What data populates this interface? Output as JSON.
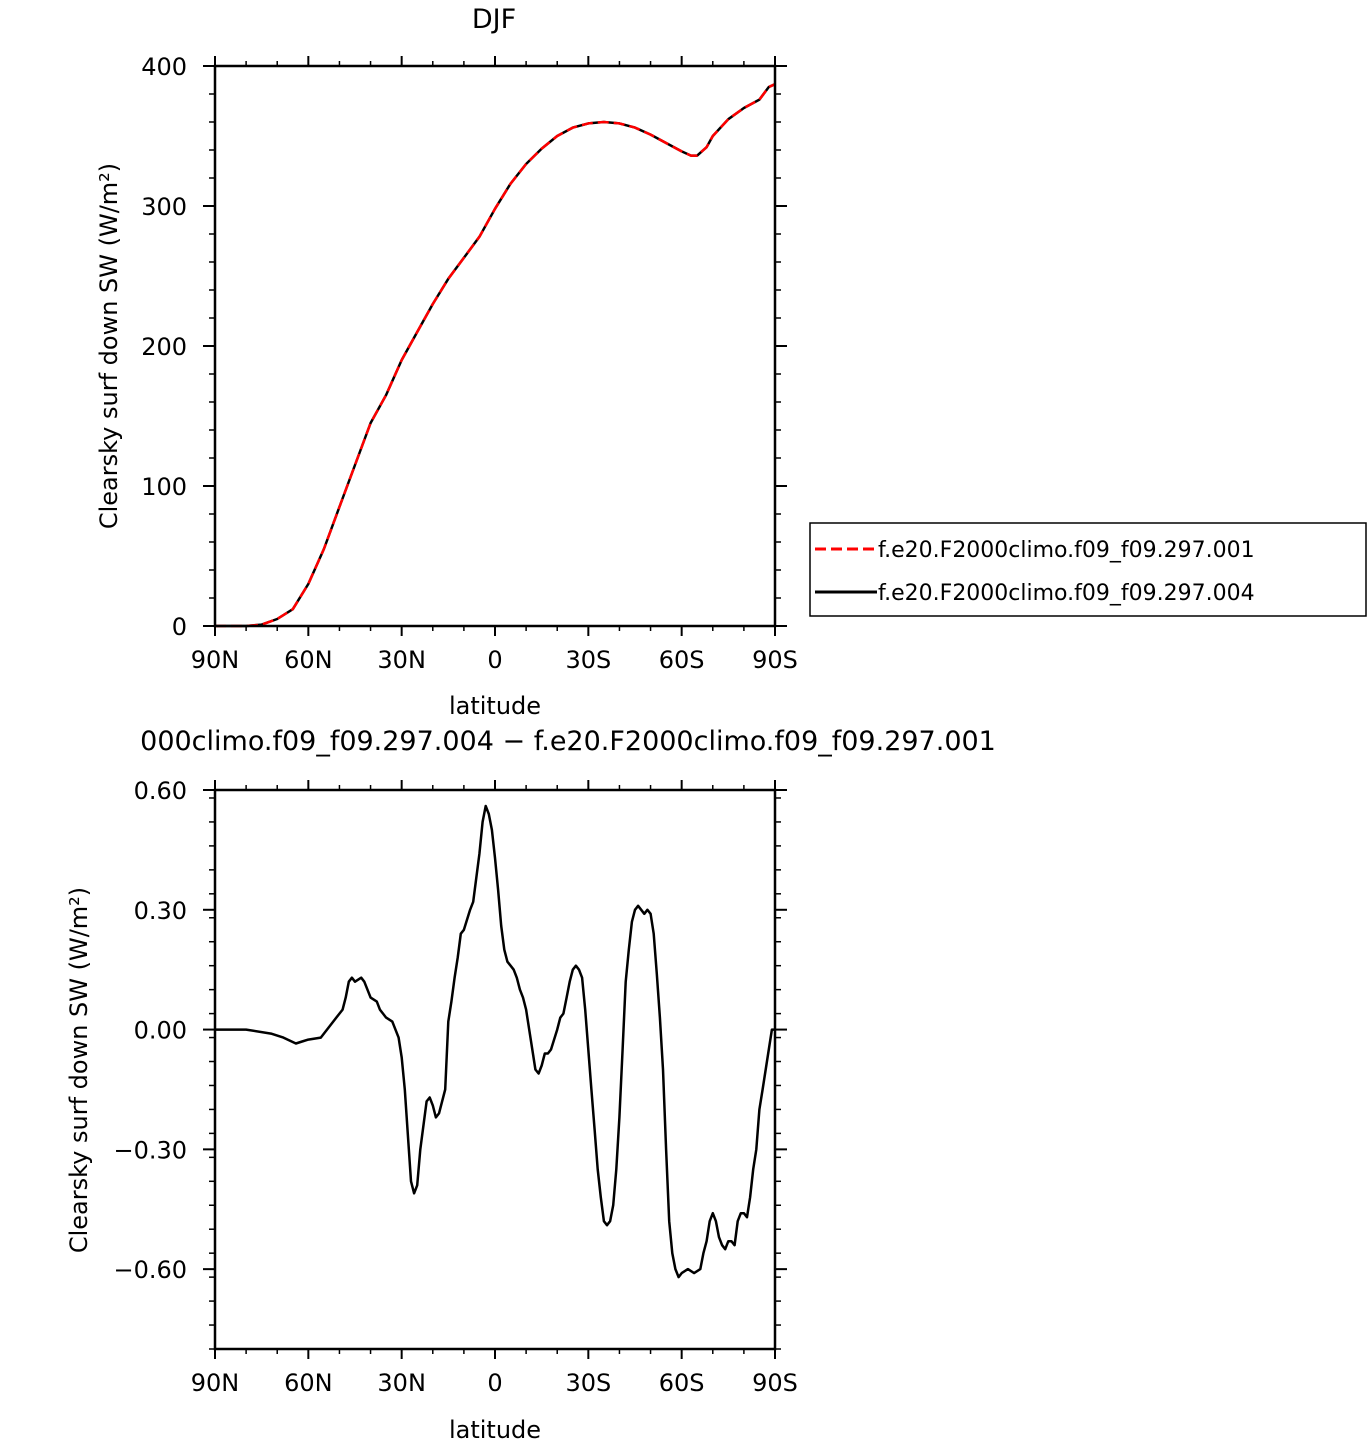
{
  "chart_data": [
    {
      "type": "line",
      "title": "DJF",
      "xlabel": "latitude",
      "ylabel": "Clearsky surf down SW (W/m²)",
      "xlim": [
        90,
        -90
      ],
      "ylim": [
        0,
        400
      ],
      "xticks": [
        {
          "v": 90,
          "label": "90N"
        },
        {
          "v": 60,
          "label": "60N"
        },
        {
          "v": 30,
          "label": "30N"
        },
        {
          "v": 0,
          "label": "0"
        },
        {
          "v": -30,
          "label": "30S"
        },
        {
          "v": -60,
          "label": "60S"
        },
        {
          "v": -90,
          "label": "90S"
        }
      ],
      "yticks": [
        {
          "v": 0,
          "label": "0"
        },
        {
          "v": 100,
          "label": "100"
        },
        {
          "v": 200,
          "label": "200"
        },
        {
          "v": 300,
          "label": "300"
        },
        {
          "v": 400,
          "label": "400"
        }
      ],
      "legend_position": "right",
      "series": [
        {
          "name": "f.e20.F2000climo.f09_f09.297.001",
          "color": "#ff0000",
          "dash": "dashed",
          "x": [
            90,
            85,
            80,
            75,
            70,
            65,
            60,
            55,
            50,
            45,
            40,
            35,
            30,
            25,
            20,
            15,
            10,
            5,
            0,
            -5,
            -10,
            -15,
            -20,
            -25,
            -30,
            -35,
            -40,
            -45,
            -50,
            -55,
            -60,
            -63,
            -65,
            -68,
            -70,
            -75,
            -80,
            -85,
            -88,
            -90
          ],
          "y": [
            0,
            0,
            0,
            1,
            5,
            12,
            30,
            55,
            85,
            115,
            145,
            165,
            190,
            210,
            230,
            248,
            263,
            278,
            298,
            316,
            330,
            341,
            350,
            356,
            359,
            360,
            359,
            356,
            351,
            345,
            339,
            336,
            336,
            342,
            350,
            362,
            370,
            376,
            385,
            387
          ]
        },
        {
          "name": "f.e20.F2000climo.f09_f09.297.004",
          "color": "#000000",
          "dash": "solid",
          "x": [
            90,
            85,
            80,
            75,
            70,
            65,
            60,
            55,
            50,
            45,
            40,
            35,
            30,
            25,
            20,
            15,
            10,
            5,
            0,
            -5,
            -10,
            -15,
            -20,
            -25,
            -30,
            -35,
            -40,
            -45,
            -50,
            -55,
            -60,
            -63,
            -65,
            -68,
            -70,
            -75,
            -80,
            -85,
            -88,
            -90
          ],
          "y": [
            0,
            0,
            0,
            1,
            5,
            12,
            30,
            55,
            85,
            115,
            145,
            165,
            190,
            210,
            230,
            248,
            263,
            278,
            298,
            316,
            330,
            341,
            350,
            356,
            359,
            360,
            359,
            356,
            351,
            345,
            339,
            336,
            336,
            342,
            350,
            362,
            370,
            376,
            385,
            387
          ]
        }
      ]
    },
    {
      "type": "line",
      "title": "000climo.f09_f09.297.004 − f.e20.F2000climo.f09_f09.297.001",
      "xlabel": "latitude",
      "ylabel": "Clearsky surf down SW (W/m²)",
      "xlim": [
        90,
        -90
      ],
      "ylim": [
        -0.8,
        0.6
      ],
      "xticks": [
        {
          "v": 90,
          "label": "90N"
        },
        {
          "v": 60,
          "label": "60N"
        },
        {
          "v": 30,
          "label": "30N"
        },
        {
          "v": 0,
          "label": "0"
        },
        {
          "v": -30,
          "label": "30S"
        },
        {
          "v": -60,
          "label": "60S"
        },
        {
          "v": -90,
          "label": "90S"
        }
      ],
      "yticks": [
        {
          "v": 0.6,
          "label": "0.60"
        },
        {
          "v": 0.3,
          "label": "0.30"
        },
        {
          "v": 0,
          "label": "0.00"
        },
        {
          "v": -0.3,
          "label": "−0.30"
        },
        {
          "v": -0.6,
          "label": "−0.60"
        }
      ],
      "series": [
        {
          "color": "#000000",
          "x": [
            90,
            80,
            72,
            68,
            64,
            62,
            60,
            56,
            53,
            51,
            49,
            48,
            47,
            46,
            45,
            43,
            42,
            40,
            38,
            37,
            35,
            33,
            31,
            30,
            29,
            27,
            26,
            25,
            24,
            22,
            21,
            20,
            19,
            18,
            16,
            15,
            14,
            13,
            12,
            11,
            10,
            8,
            7,
            6,
            5,
            4,
            3,
            2,
            1,
            0,
            -1,
            -2,
            -3,
            -4,
            -5,
            -6,
            -7,
            -8,
            -9,
            -10,
            -11,
            -12,
            -13,
            -14,
            -15,
            -16,
            -17,
            -18,
            -20,
            -21,
            -22,
            -23,
            -24,
            -25,
            -26,
            -27,
            -28,
            -29,
            -30,
            -31,
            -32,
            -33,
            -34,
            -35,
            -36,
            -37,
            -38,
            -39,
            -40,
            -41,
            -42,
            -43,
            -44,
            -45,
            -46,
            -47,
            -48,
            -49,
            -50,
            -51,
            -52,
            -53,
            -54,
            -55,
            -56,
            -57,
            -58,
            -59,
            -60,
            -62,
            -64,
            -66,
            -67,
            -68,
            -69,
            -70,
            -71,
            -72,
            -73,
            -74,
            -75,
            -76,
            -77,
            -78,
            -79,
            -80,
            -81,
            -82,
            -83,
            -84,
            -85,
            -86,
            -87,
            -88,
            -89,
            -90
          ],
          "y": [
            0.0,
            0.0,
            -0.01,
            -0.02,
            -0.035,
            -0.03,
            -0.025,
            -0.02,
            0.01,
            0.03,
            0.05,
            0.08,
            0.12,
            0.13,
            0.12,
            0.13,
            0.12,
            0.08,
            0.07,
            0.05,
            0.03,
            0.02,
            -0.02,
            -0.07,
            -0.15,
            -0.38,
            -0.41,
            -0.39,
            -0.3,
            -0.18,
            -0.17,
            -0.19,
            -0.22,
            -0.21,
            -0.15,
            0.02,
            0.07,
            0.13,
            0.18,
            0.24,
            0.25,
            0.3,
            0.32,
            0.38,
            0.44,
            0.52,
            0.56,
            0.54,
            0.5,
            0.43,
            0.35,
            0.26,
            0.2,
            0.17,
            0.16,
            0.15,
            0.13,
            0.1,
            0.08,
            0.05,
            0.0,
            -0.05,
            -0.1,
            -0.11,
            -0.09,
            -0.06,
            -0.06,
            -0.05,
            0.0,
            0.03,
            0.04,
            0.08,
            0.12,
            0.15,
            0.16,
            0.15,
            0.13,
            0.05,
            -0.05,
            -0.15,
            -0.25,
            -0.35,
            -0.42,
            -0.48,
            -0.49,
            -0.48,
            -0.44,
            -0.35,
            -0.22,
            -0.05,
            0.12,
            0.2,
            0.27,
            0.3,
            0.31,
            0.3,
            0.29,
            0.3,
            0.29,
            0.24,
            0.14,
            0.03,
            -0.1,
            -0.3,
            -0.48,
            -0.56,
            -0.6,
            -0.62,
            -0.61,
            -0.6,
            -0.61,
            -0.6,
            -0.56,
            -0.53,
            -0.48,
            -0.46,
            -0.48,
            -0.52,
            -0.54,
            -0.55,
            -0.53,
            -0.53,
            -0.54,
            -0.48,
            -0.46,
            -0.46,
            -0.47,
            -0.42,
            -0.35,
            -0.3,
            -0.2,
            -0.15,
            -0.1,
            -0.05,
            0.0,
            0.0
          ]
        }
      ]
    }
  ]
}
